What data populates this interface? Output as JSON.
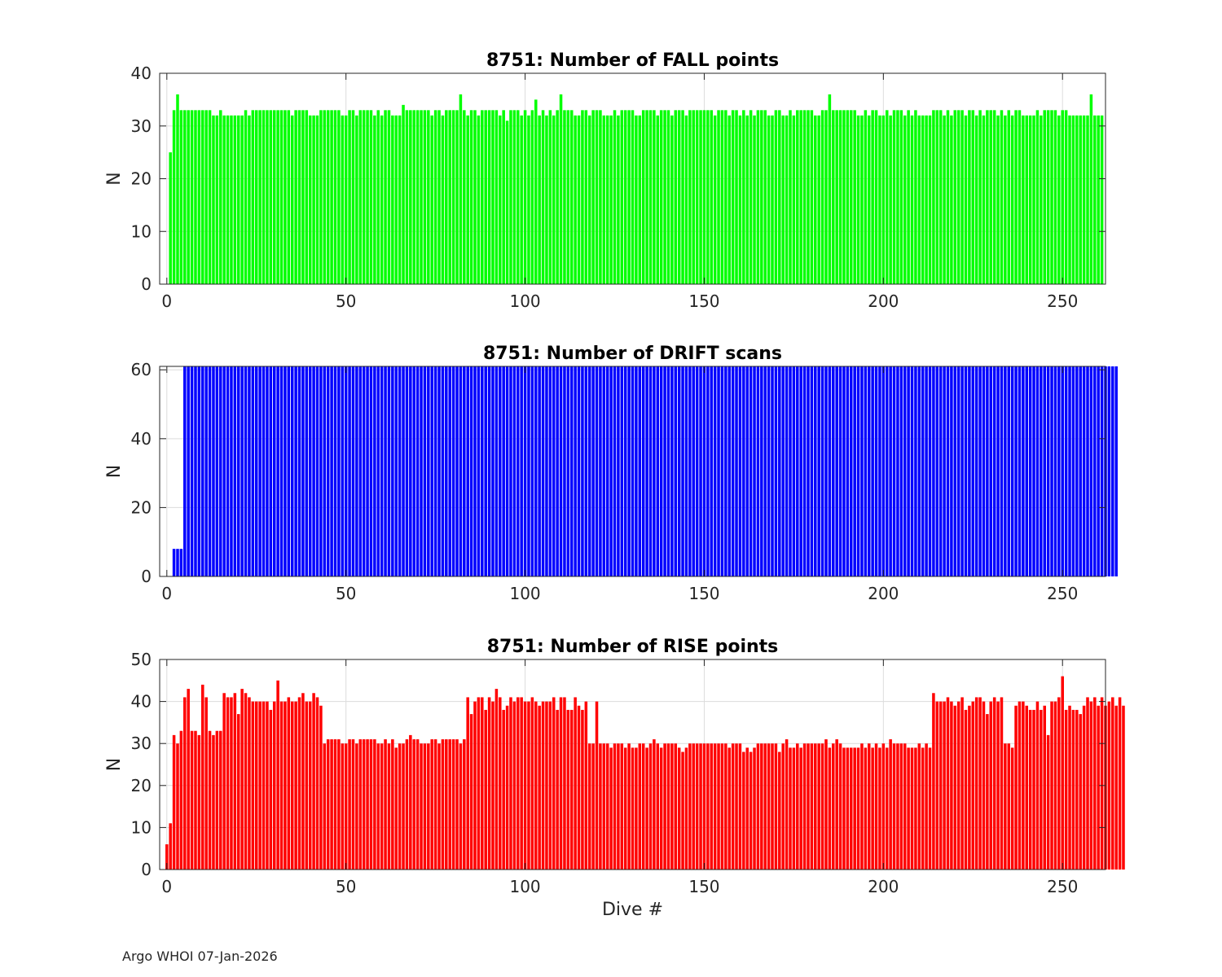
{
  "footer": "Argo WHOI 07-Jan-2026",
  "chart_data": [
    {
      "type": "bar",
      "title": "8751: Number of FALL points",
      "xlabel": "",
      "ylabel": "N",
      "color": "#00ff00",
      "xlim": [
        -2,
        262
      ],
      "ylim": [
        0,
        40
      ],
      "xticks": [
        0,
        50,
        100,
        150,
        200,
        250
      ],
      "yticks": [
        0,
        10,
        20,
        30,
        40
      ],
      "grid": true,
      "x_start": 1,
      "values": [
        25,
        33,
        36,
        33,
        33,
        33,
        33,
        33,
        33,
        33,
        33,
        33,
        32,
        32,
        33,
        32,
        32,
        32,
        32,
        32,
        32,
        33,
        32,
        33,
        33,
        33,
        33,
        33,
        33,
        33,
        33,
        33,
        33,
        33,
        32,
        33,
        33,
        33,
        33,
        32,
        32,
        32,
        33,
        33,
        33,
        33,
        33,
        33,
        32,
        32,
        33,
        33,
        32,
        33,
        33,
        33,
        33,
        32,
        33,
        32,
        33,
        33,
        32,
        32,
        32,
        34,
        33,
        33,
        33,
        33,
        33,
        33,
        33,
        32,
        33,
        33,
        32,
        33,
        33,
        33,
        33,
        36,
        33,
        32,
        33,
        33,
        32,
        33,
        33,
        33,
        33,
        33,
        32,
        33,
        31,
        33,
        33,
        33,
        32,
        33,
        32,
        33,
        35,
        32,
        33,
        32,
        33,
        32,
        33,
        36,
        33,
        33,
        33,
        32,
        32,
        33,
        33,
        32,
        33,
        33,
        33,
        32,
        32,
        32,
        33,
        32,
        33,
        33,
        33,
        33,
        32,
        32,
        33,
        33,
        33,
        33,
        32,
        33,
        33,
        33,
        32,
        33,
        33,
        33,
        32,
        33,
        33,
        33,
        33,
        33,
        33,
        33,
        32,
        33,
        33,
        33,
        32,
        33,
        33,
        32,
        33,
        32,
        33,
        32,
        33,
        33,
        33,
        32,
        32,
        33,
        33,
        32,
        32,
        33,
        32,
        33,
        33,
        33,
        33,
        33,
        32,
        32,
        33,
        33,
        36,
        33,
        33,
        33,
        33,
        33,
        33,
        33,
        32,
        32,
        33,
        32,
        33,
        33,
        32,
        32,
        33,
        32,
        33,
        33,
        33,
        32,
        33,
        32,
        33,
        32,
        32,
        32,
        32,
        33,
        33,
        33,
        32,
        33,
        32,
        33,
        33,
        33,
        32,
        33,
        33,
        32,
        33,
        32,
        33,
        33,
        33,
        32,
        33,
        32,
        33,
        32,
        33,
        33,
        32,
        32,
        32,
        32,
        33,
        32,
        33,
        33,
        33,
        33,
        32,
        33,
        33,
        32,
        32,
        32,
        32,
        32,
        32,
        36,
        32,
        32,
        32
      ]
    },
    {
      "type": "bar",
      "title": "8751: Number of DRIFT scans",
      "xlabel": "",
      "ylabel": "N",
      "color": "#0000ff",
      "xlim": [
        -2,
        262
      ],
      "ylim": [
        0,
        61
      ],
      "xticks": [
        0,
        50,
        100,
        150,
        200,
        250
      ],
      "yticks": [
        0,
        20,
        40,
        60
      ],
      "grid": true,
      "x_start": 1,
      "values_note_free": true,
      "values": [
        0,
        8,
        8,
        8,
        61,
        61,
        61,
        61,
        61,
        61,
        61,
        61,
        61,
        61,
        61,
        61,
        61,
        61,
        61,
        61,
        61,
        61,
        61,
        61,
        61,
        61,
        61,
        61,
        61,
        61,
        61,
        61,
        61,
        61,
        61,
        61,
        61,
        61,
        61,
        61,
        61,
        61,
        61,
        61,
        61,
        61,
        61,
        61,
        61,
        61,
        61,
        61,
        61,
        61,
        61,
        61,
        61,
        61,
        61,
        61,
        61,
        61,
        61,
        61,
        61,
        61,
        61,
        61,
        61,
        61,
        61,
        61,
        61,
        61,
        61,
        61,
        61,
        61,
        61,
        61,
        61,
        61,
        61,
        61,
        61,
        61,
        61,
        61,
        61,
        61,
        61,
        61,
        61,
        61,
        61,
        61,
        61,
        61,
        61,
        61,
        61,
        61,
        61,
        61,
        61,
        61,
        61,
        61,
        61,
        61,
        61,
        61,
        61,
        61,
        61,
        61,
        61,
        61,
        61,
        61,
        61,
        61,
        61,
        61,
        61,
        61,
        61,
        61,
        61,
        61,
        61,
        61,
        61,
        61,
        61,
        61,
        61,
        61,
        61,
        61,
        61,
        61,
        61,
        61,
        61,
        61,
        61,
        61,
        61,
        61,
        61,
        61,
        61,
        61,
        61,
        61,
        61,
        61,
        61,
        61,
        61,
        61,
        61,
        61,
        61,
        61,
        61,
        61,
        61,
        61,
        61,
        61,
        61,
        61,
        61,
        61,
        61,
        61,
        61,
        61,
        61,
        61,
        61,
        61,
        61,
        61,
        61,
        61,
        61,
        61,
        61,
        61,
        61,
        61,
        61,
        61,
        61,
        61,
        61,
        61,
        61,
        61,
        61,
        61,
        61,
        61,
        61,
        61,
        61,
        61,
        61,
        61,
        61,
        61,
        61,
        61,
        61,
        61,
        61,
        61,
        61,
        61,
        61,
        61,
        61,
        61,
        61,
        61,
        61,
        61,
        61,
        61,
        61,
        61,
        61,
        61,
        61,
        61,
        61,
        61,
        61,
        61,
        61,
        61,
        61,
        61,
        61,
        61,
        61,
        61,
        61,
        61,
        61,
        61,
        61,
        61,
        61,
        61,
        61,
        61,
        61,
        61,
        61,
        61,
        61
      ]
    },
    {
      "type": "bar",
      "title": "8751: Number of RISE points",
      "xlabel": "Dive #",
      "ylabel": "N",
      "color": "#ff0000",
      "xlim": [
        -2,
        262
      ],
      "ylim": [
        0,
        50
      ],
      "xticks": [
        0,
        50,
        100,
        150,
        200,
        250
      ],
      "yticks": [
        0,
        10,
        20,
        30,
        40,
        50
      ],
      "grid": true,
      "x_start": 0,
      "values": [
        6,
        11,
        32,
        30,
        33,
        41,
        43,
        33,
        33,
        32,
        44,
        41,
        33,
        32,
        33,
        33,
        42,
        41,
        41,
        42,
        37,
        43,
        42,
        41,
        40,
        40,
        40,
        40,
        40,
        38,
        40,
        45,
        40,
        40,
        41,
        40,
        40,
        41,
        42,
        40,
        40,
        42,
        41,
        39,
        30,
        31,
        31,
        31,
        31,
        30,
        30,
        31,
        31,
        30,
        31,
        31,
        31,
        31,
        31,
        30,
        30,
        31,
        30,
        31,
        29,
        30,
        30,
        31,
        32,
        31,
        31,
        30,
        30,
        30,
        31,
        31,
        30,
        31,
        31,
        31,
        31,
        31,
        30,
        31,
        41,
        37,
        40,
        41,
        41,
        38,
        41,
        40,
        43,
        41,
        38,
        39,
        41,
        40,
        41,
        41,
        40,
        40,
        41,
        40,
        39,
        40,
        40,
        40,
        41,
        38,
        41,
        41,
        38,
        38,
        41,
        39,
        38,
        40,
        30,
        30,
        40,
        30,
        30,
        30,
        29,
        30,
        30,
        30,
        29,
        30,
        29,
        29,
        30,
        30,
        29,
        30,
        31,
        30,
        29,
        30,
        30,
        30,
        30,
        29,
        28,
        29,
        30,
        30,
        30,
        30,
        30,
        30,
        30,
        30,
        30,
        30,
        30,
        29,
        30,
        30,
        30,
        28,
        29,
        28,
        29,
        30,
        30,
        30,
        30,
        30,
        30,
        28,
        30,
        31,
        29,
        29,
        30,
        29,
        30,
        30,
        30,
        30,
        30,
        30,
        31,
        29,
        30,
        31,
        30,
        29,
        29,
        29,
        29,
        29,
        30,
        29,
        30,
        29,
        30,
        29,
        30,
        29,
        31,
        30,
        30,
        30,
        30,
        29,
        29,
        29,
        30,
        29,
        30,
        29,
        42,
        40,
        40,
        40,
        41,
        40,
        39,
        40,
        41,
        38,
        39,
        40,
        41,
        41,
        40,
        37,
        40,
        41,
        40,
        41,
        30,
        30,
        29,
        39,
        40,
        40,
        39,
        38,
        38,
        40,
        38,
        39,
        32,
        40,
        40,
        41,
        46,
        38,
        39,
        38,
        38,
        37,
        39,
        41,
        40,
        41,
        39,
        41,
        39,
        40,
        41,
        39,
        41,
        39
      ]
    }
  ]
}
